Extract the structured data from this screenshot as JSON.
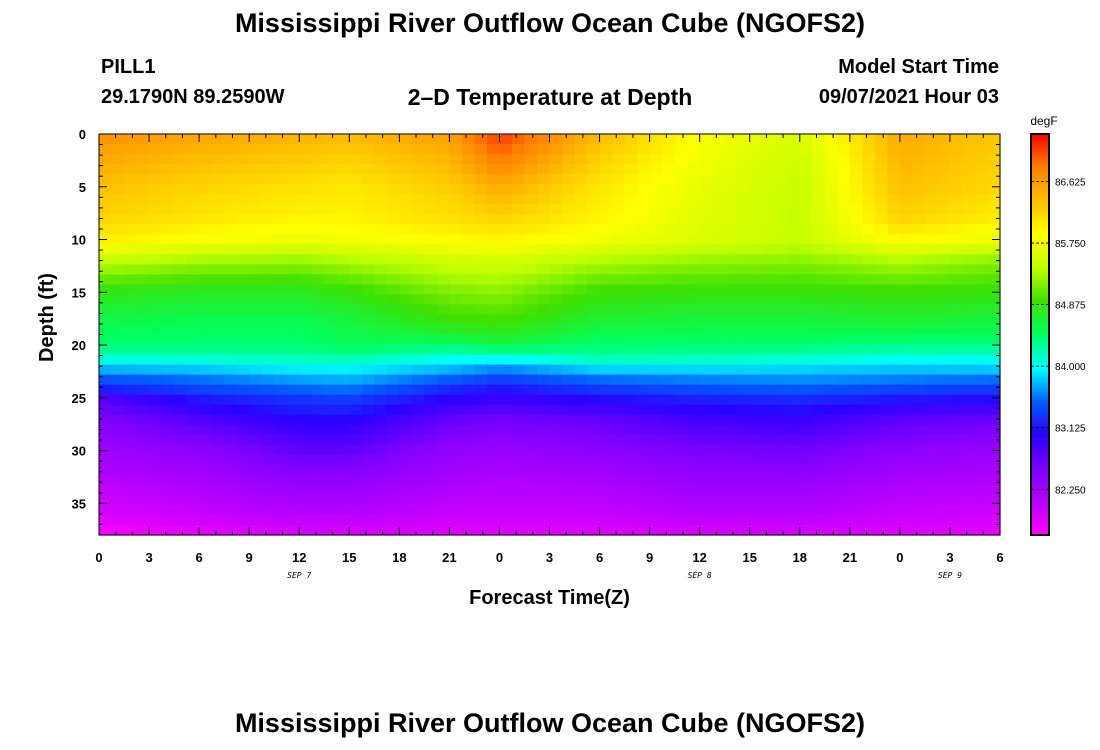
{
  "header": {
    "title": "Mississippi River Outflow Ocean Cube (NGOFS2)",
    "station_id": "PILL1",
    "station_location": "29.1790N  89.2590W",
    "plot_title": "2–D Temperature at Depth",
    "start_label": "Model Start Time",
    "start_value": "09/07/2021 Hour 03"
  },
  "footer": {
    "title": "Mississippi River Outflow Ocean Cube (NGOFS2)"
  },
  "chart_data": {
    "type": "heatmap",
    "title": "2–D Temperature at Depth",
    "xlabel": "Forecast Time(Z)",
    "ylabel": "Depth (ft)",
    "x_unit": "forecast hour",
    "xlim": [
      0,
      54
    ],
    "x_tick_values": [
      0,
      3,
      6,
      9,
      12,
      15,
      18,
      21,
      24,
      27,
      30,
      33,
      36,
      39,
      42,
      45,
      48,
      51,
      54
    ],
    "x_tick_labels": [
      "0",
      "3",
      "6",
      "9",
      "12",
      "15",
      "18",
      "21",
      "0",
      "3",
      "6",
      "9",
      "12",
      "15",
      "18",
      "21",
      "0",
      "3",
      "6"
    ],
    "date_labels": [
      {
        "text": "SEP 7",
        "x": 12
      },
      {
        "text": "SEP 8",
        "x": 36
      },
      {
        "text": "SEP 9",
        "x": 51
      }
    ],
    "ylim": [
      0,
      38
    ],
    "y_reversed": true,
    "y_ticks": [
      0,
      5,
      10,
      15,
      20,
      25,
      30,
      35
    ],
    "colorbar": {
      "unit": "degF",
      "range": [
        81.6,
        87.3
      ],
      "tick_values": [
        82.25,
        83.125,
        84.0,
        84.875,
        85.75,
        86.625
      ],
      "tick_labels": [
        "82.250",
        "83.125",
        "84.000",
        "84.875",
        "85.750",
        "86.625"
      ],
      "colors": [
        "#ff00ff",
        "#b400ff",
        "#7a00ff",
        "#2a00ff",
        "#0060ff",
        "#00ffff",
        "#00ff60",
        "#40e000",
        "#c0ff00",
        "#ffff00",
        "#ffc000",
        "#ff8000",
        "#ff0000"
      ]
    },
    "depths": [
      0,
      2,
      5,
      8,
      10,
      12,
      15,
      18,
      20,
      21,
      22,
      23,
      24,
      25,
      27,
      30,
      33,
      36,
      38
    ],
    "time_nodes": [
      0,
      6,
      12,
      15,
      21,
      24,
      30,
      36,
      42,
      48,
      54
    ],
    "values": [
      [
        86.7,
        86.55,
        86.45,
        86.4,
        86.6,
        87.1,
        86.4,
        85.85,
        85.6,
        86.5,
        86.3
      ],
      [
        86.55,
        86.4,
        86.3,
        86.25,
        86.45,
        86.9,
        86.25,
        85.8,
        85.5,
        86.45,
        86.25
      ],
      [
        86.35,
        86.2,
        86.1,
        86.05,
        86.25,
        86.5,
        86.05,
        85.7,
        85.45,
        86.35,
        86.15
      ],
      [
        86.2,
        86.05,
        85.95,
        85.95,
        86.1,
        86.2,
        85.95,
        85.65,
        85.45,
        86.2,
        86.0
      ],
      [
        86.0,
        85.85,
        85.75,
        85.8,
        85.9,
        85.95,
        85.8,
        85.6,
        85.45,
        85.9,
        85.75
      ],
      [
        85.45,
        85.3,
        85.25,
        85.35,
        85.5,
        85.55,
        85.35,
        85.25,
        85.2,
        85.35,
        85.2
      ],
      [
        84.8,
        84.75,
        84.75,
        84.85,
        85.15,
        85.2,
        84.9,
        84.85,
        84.85,
        84.9,
        84.85
      ],
      [
        84.55,
        84.5,
        84.5,
        84.6,
        84.85,
        84.9,
        84.65,
        84.6,
        84.6,
        84.65,
        84.6
      ],
      [
        84.4,
        84.4,
        84.4,
        84.5,
        84.45,
        84.6,
        84.4,
        84.4,
        84.4,
        84.35,
        84.35
      ],
      [
        84.2,
        84.2,
        84.25,
        84.3,
        84.1,
        84.1,
        84.3,
        84.25,
        84.2,
        84.1,
        84.1
      ],
      [
        83.85,
        83.9,
        84.0,
        84.0,
        83.85,
        83.7,
        83.95,
        83.95,
        83.9,
        83.85,
        83.9
      ],
      [
        83.5,
        83.6,
        83.75,
        83.8,
        83.55,
        83.4,
        83.6,
        83.65,
        83.7,
        83.65,
        83.6
      ],
      [
        83.25,
        83.4,
        83.55,
        83.6,
        83.25,
        83.15,
        83.35,
        83.45,
        83.5,
        83.4,
        83.35
      ],
      [
        82.8,
        83.15,
        83.3,
        83.35,
        83.05,
        82.95,
        83.1,
        83.2,
        83.25,
        83.15,
        83.1
      ],
      [
        82.5,
        82.8,
        83.05,
        83.05,
        82.7,
        82.6,
        82.7,
        82.9,
        82.95,
        82.75,
        82.65
      ],
      [
        82.25,
        82.4,
        82.7,
        82.7,
        82.35,
        82.3,
        82.4,
        82.55,
        82.6,
        82.4,
        82.3
      ],
      [
        82.05,
        82.15,
        82.35,
        82.35,
        82.15,
        82.1,
        82.15,
        82.3,
        82.3,
        82.15,
        82.1
      ],
      [
        81.85,
        81.95,
        82.05,
        82.05,
        81.95,
        81.95,
        81.95,
        82.05,
        82.05,
        81.95,
        81.9
      ],
      [
        81.65,
        81.75,
        81.85,
        81.85,
        81.8,
        81.8,
        81.8,
        81.85,
        81.85,
        81.8,
        81.75
      ]
    ]
  }
}
